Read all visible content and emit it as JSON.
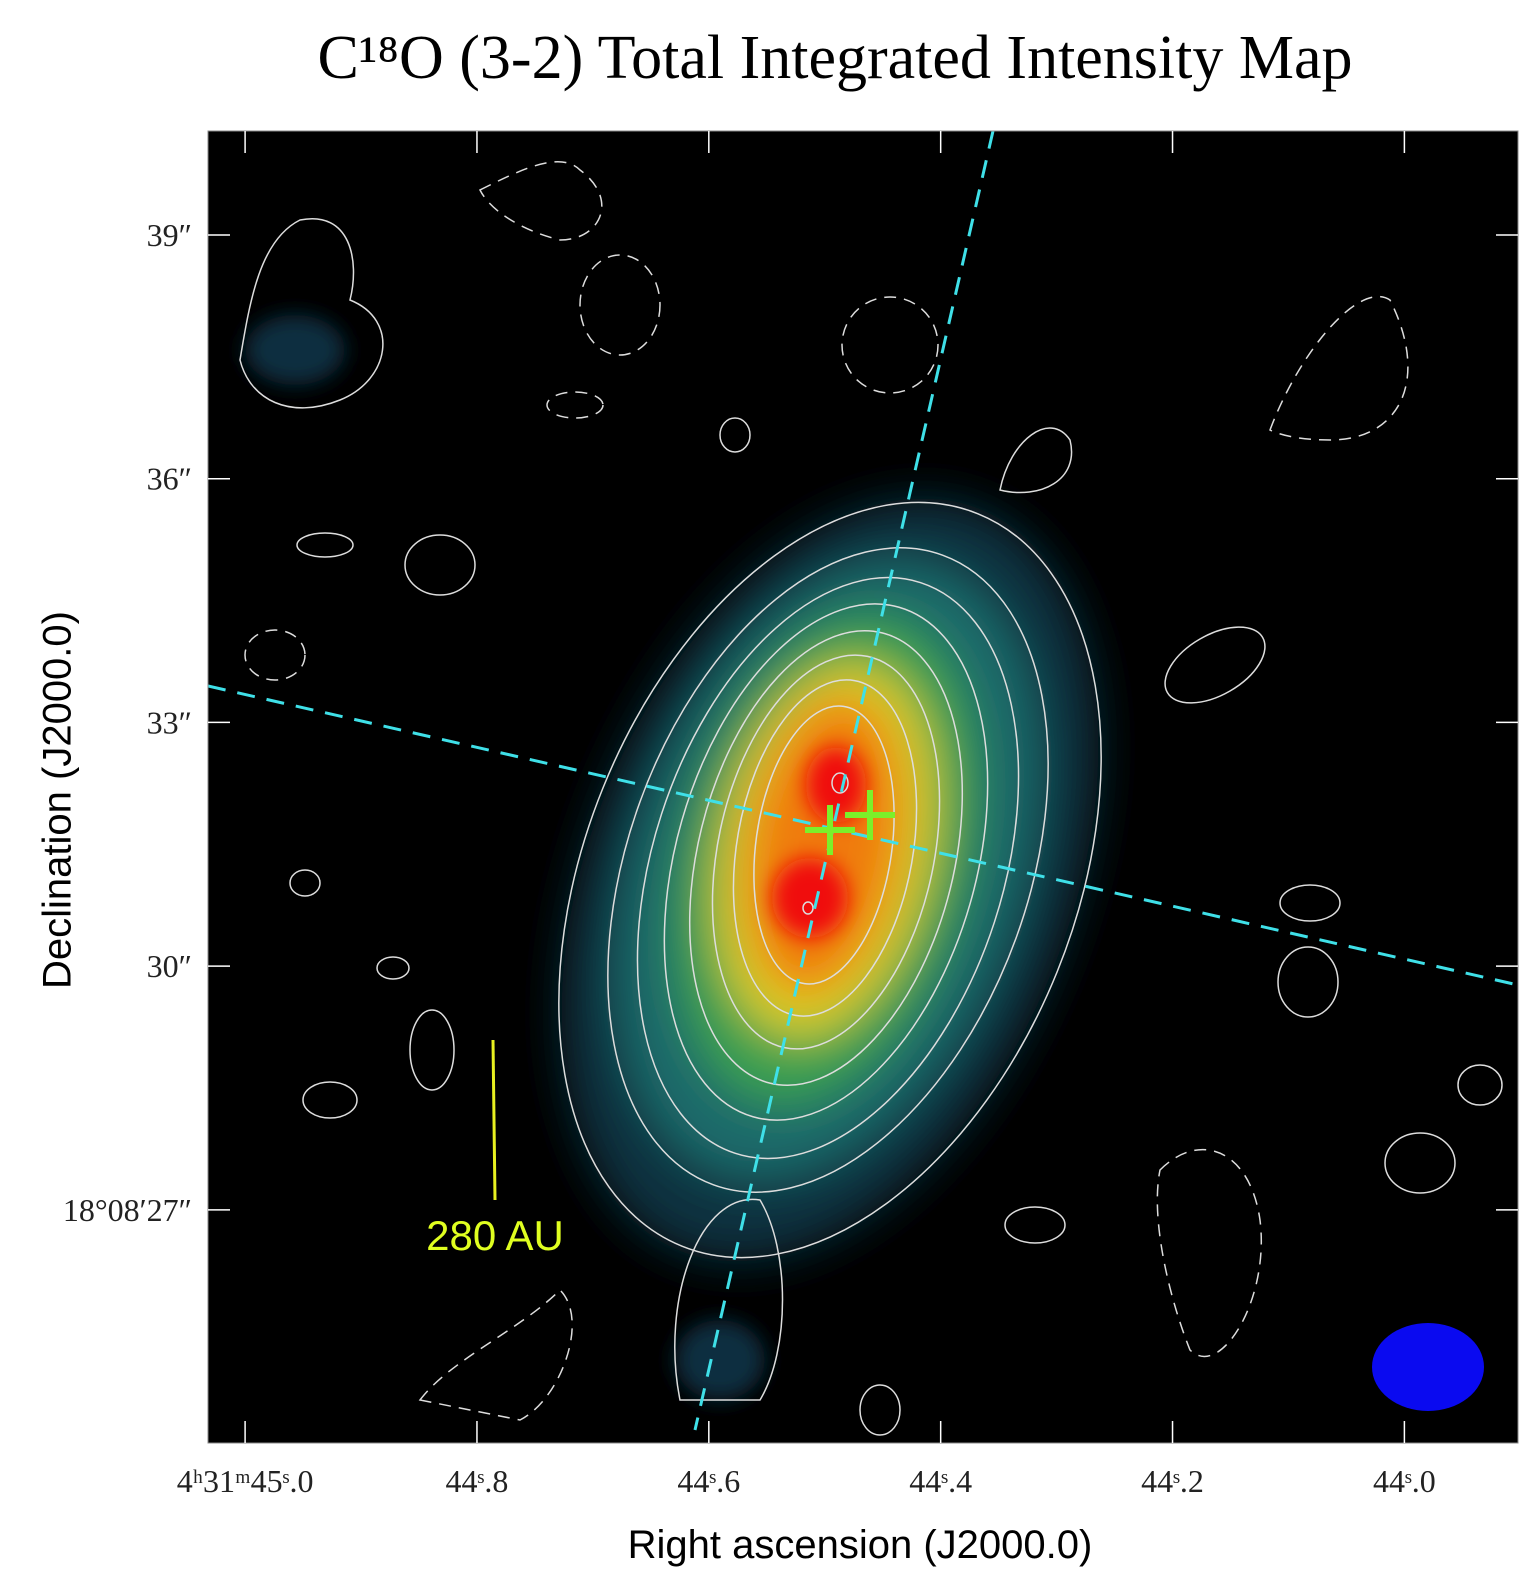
{
  "chart_data": {
    "type": "image-map",
    "title": "C¹⁸O (3-2) Total Integrated Intensity Map",
    "x_label": "Right ascension (J2000.0)",
    "y_label": "Declination (J2000.0)",
    "annotation": "280 AU",
    "xlim": [
      45.032,
      43.902
    ],
    "ylim": [
      24.13,
      40.28
    ],
    "xticks": [
      {
        "value": 45.0,
        "label": "4ʰ31ᵐ45ˢ.0"
      },
      {
        "value": 44.8,
        "label": "44ˢ.8"
      },
      {
        "value": 44.6,
        "label": "44ˢ.6"
      },
      {
        "value": 44.4,
        "label": "44ˢ.4"
      },
      {
        "value": 44.2,
        "label": "44ˢ.2"
      },
      {
        "value": 44.0,
        "label": "44ˢ.0"
      }
    ],
    "yticks": [
      {
        "value": 39,
        "label": "39″"
      },
      {
        "value": 36,
        "label": "36″"
      },
      {
        "value": 33,
        "label": "33″"
      },
      {
        "value": 30,
        "label": "30″"
      },
      {
        "value": 27,
        "label": "18°08′27″"
      }
    ]
  }
}
